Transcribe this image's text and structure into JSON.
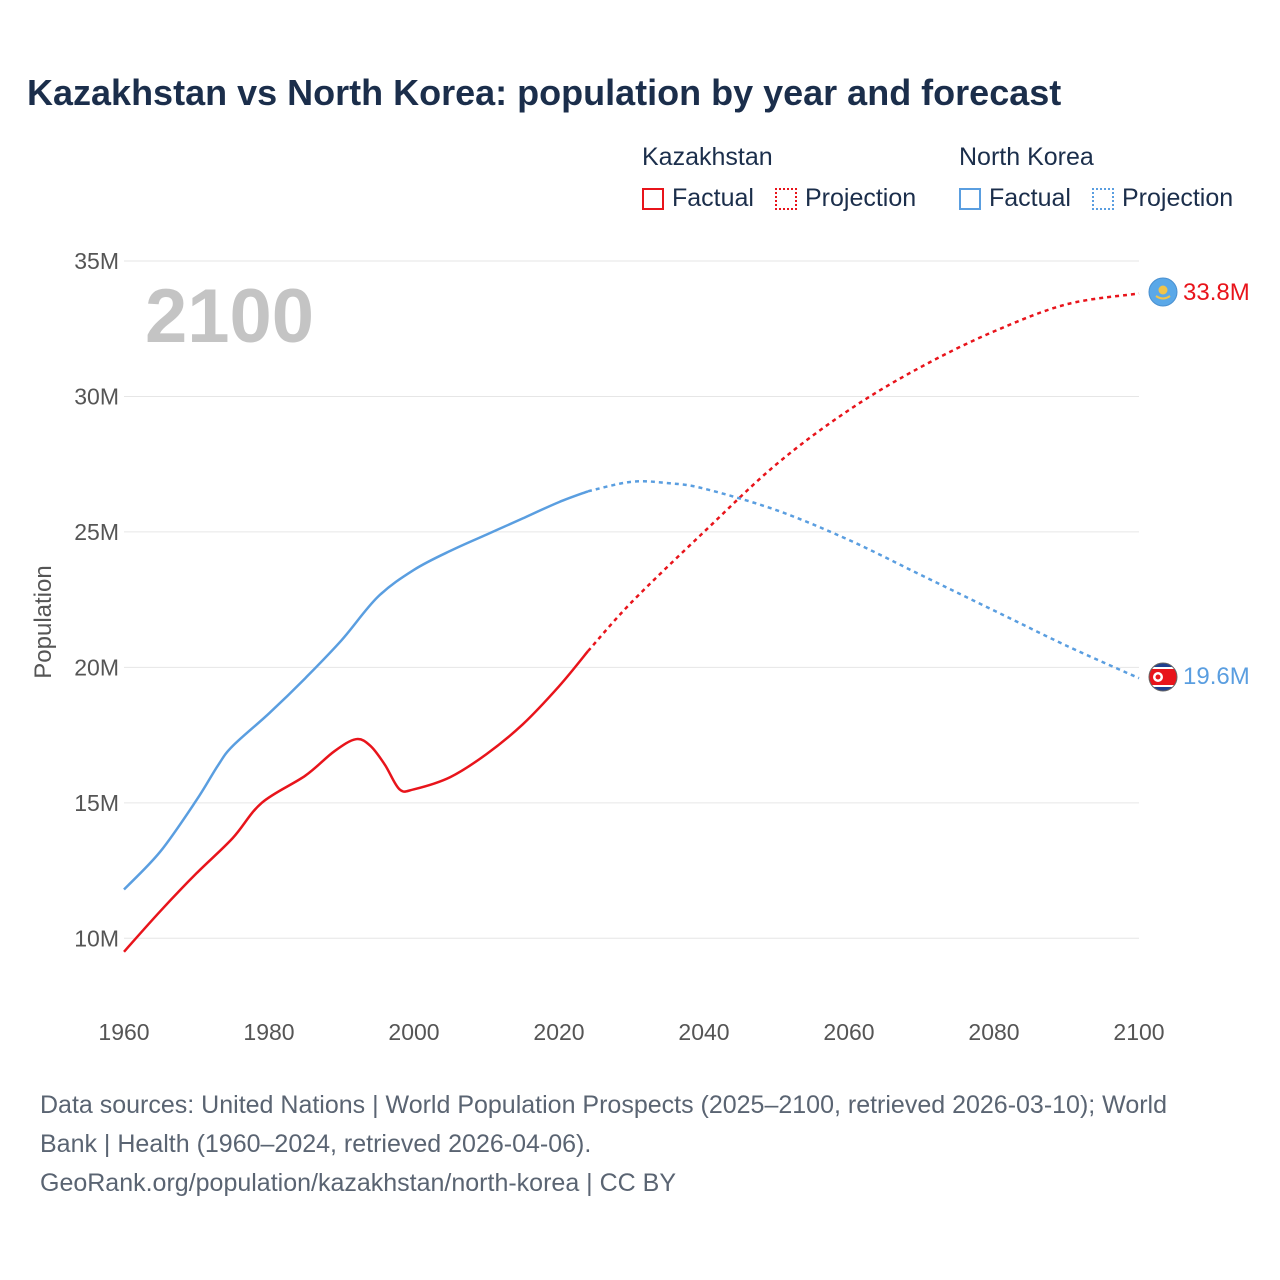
{
  "title": "Kazakhstan vs North Korea: population by year and forecast",
  "year_overlay": "2100",
  "legend": {
    "groups": [
      {
        "name": "Kazakhstan",
        "color": "#e8141b",
        "factual": "Factual",
        "projection": "Projection"
      },
      {
        "name": "North Korea",
        "color": "#5a9ee0",
        "factual": "Factual",
        "projection": "Projection"
      }
    ]
  },
  "end_labels": {
    "kazakhstan": {
      "text": "33.8M",
      "icon": "kazakhstan-flag-icon"
    },
    "north_korea": {
      "text": "19.6M",
      "icon": "north-korea-flag-icon"
    }
  },
  "footer": {
    "sources": "Data sources: United Nations | World Population Prospects (2025–2100, retrieved 2026-03-10); World Bank | Health (1960–2024, retrieved 2026-04-06).",
    "credit": "GeoRank.org/population/kazakhstan/north-korea | CC BY"
  },
  "chart_data": {
    "type": "line",
    "title": "Kazakhstan vs North Korea: population by year and forecast",
    "xlabel": "",
    "ylabel": "Population",
    "xlim": [
      1960,
      2100
    ],
    "ylim": [
      7500000,
      35000000
    ],
    "x_ticks": [
      1960,
      1980,
      2000,
      2020,
      2040,
      2060,
      2080,
      2100
    ],
    "y_ticks": [
      10000000,
      15000000,
      20000000,
      25000000,
      30000000,
      35000000
    ],
    "y_tick_labels": [
      "10M",
      "15M",
      "20M",
      "25M",
      "30M",
      "35M"
    ],
    "grid": true,
    "legend_position": "top-right",
    "series": [
      {
        "name": "Kazakhstan",
        "color": "#e8141b",
        "factual": [
          [
            1960,
            9500000
          ],
          [
            1965,
            11000000
          ],
          [
            1970,
            12400000
          ],
          [
            1975,
            13700000
          ],
          [
            1979,
            15000000
          ],
          [
            1985,
            16000000
          ],
          [
            1989,
            16900000
          ],
          [
            1992,
            17350000
          ],
          [
            1994,
            17100000
          ],
          [
            1996,
            16400000
          ],
          [
            1998,
            15500000
          ],
          [
            2000,
            15500000
          ],
          [
            2005,
            15950000
          ],
          [
            2010,
            16800000
          ],
          [
            2015,
            17900000
          ],
          [
            2020,
            19300000
          ],
          [
            2024,
            20600000
          ]
        ],
        "projection": [
          [
            2024,
            20600000
          ],
          [
            2030,
            22400000
          ],
          [
            2040,
            25000000
          ],
          [
            2050,
            27500000
          ],
          [
            2060,
            29500000
          ],
          [
            2070,
            31100000
          ],
          [
            2080,
            32400000
          ],
          [
            2090,
            33400000
          ],
          [
            2100,
            33800000
          ]
        ]
      },
      {
        "name": "North Korea",
        "color": "#5a9ee0",
        "factual": [
          [
            1960,
            11800000
          ],
          [
            1965,
            13200000
          ],
          [
            1970,
            15100000
          ],
          [
            1973,
            16400000
          ],
          [
            1975,
            17100000
          ],
          [
            1980,
            18300000
          ],
          [
            1985,
            19600000
          ],
          [
            1990,
            21000000
          ],
          [
            1995,
            22600000
          ],
          [
            2000,
            23600000
          ],
          [
            2005,
            24300000
          ],
          [
            2010,
            24900000
          ],
          [
            2015,
            25500000
          ],
          [
            2020,
            26100000
          ],
          [
            2024,
            26500000
          ]
        ],
        "projection": [
          [
            2024,
            26500000
          ],
          [
            2030,
            26850000
          ],
          [
            2035,
            26800000
          ],
          [
            2040,
            26600000
          ],
          [
            2050,
            25800000
          ],
          [
            2060,
            24700000
          ],
          [
            2070,
            23400000
          ],
          [
            2080,
            22100000
          ],
          [
            2090,
            20800000
          ],
          [
            2100,
            19600000
          ]
        ]
      }
    ]
  }
}
